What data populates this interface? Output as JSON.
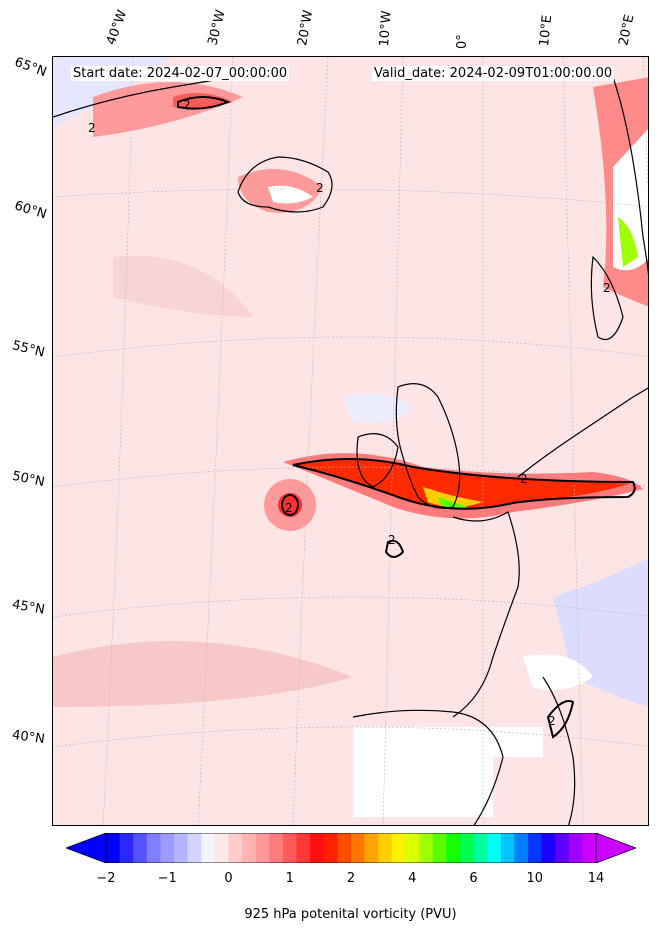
{
  "header": {
    "start_date": "Start date: 2024-02-07_00:00:00",
    "valid_date": "Valid_date: 2024-02-09T01:00:00.00"
  },
  "axes": {
    "lon_labels": [
      "40°W",
      "30°W",
      "20°W",
      "10°W",
      "0°",
      "10°E",
      "20°E"
    ],
    "lat_labels": [
      "65°N",
      "60°N",
      "55°N",
      "50°N",
      "45°N",
      "40°N"
    ]
  },
  "map": {
    "contour_label": "2",
    "field": "925 hPa potential vorticity",
    "coastline_color": "#000000"
  },
  "colorbar": {
    "label": "925 hPa potenital vorticity (PVU)",
    "ticks": [
      "−2",
      "−1",
      "0",
      "1",
      "2",
      "4",
      "6",
      "10",
      "14"
    ],
    "colors": [
      "#0000ff",
      "#2a2aff",
      "#5555ff",
      "#7f7fff",
      "#9b9bff",
      "#b5b5ff",
      "#d3d3ff",
      "#f4f4ff",
      "#ffe7e7",
      "#ffcccc",
      "#ffb4b4",
      "#ff9898",
      "#ff7a7a",
      "#ff5a5a",
      "#ff3838",
      "#ff1010",
      "#ff2200",
      "#ff4c00",
      "#ff7700",
      "#ffa300",
      "#ffcd00",
      "#fff200",
      "#d9ff00",
      "#9eff00",
      "#58ff00",
      "#12ff00",
      "#00ff4c",
      "#00ffa0",
      "#00fff2",
      "#00c4ff",
      "#0080ff",
      "#0038ff",
      "#1a00ff",
      "#5e00ff",
      "#a000ff",
      "#cc00ff"
    ]
  }
}
